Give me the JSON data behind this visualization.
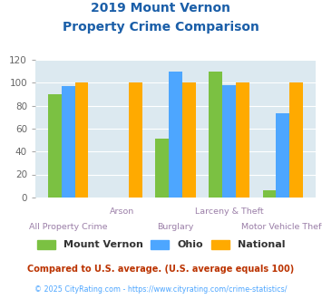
{
  "title_line1": "2019 Mount Vernon",
  "title_line2": "Property Crime Comparison",
  "categories": [
    "All Property Crime",
    "Arson",
    "Burglary",
    "Larceny & Theft",
    "Motor Vehicle Theft"
  ],
  "mount_vernon": [
    90,
    0,
    51,
    110,
    6
  ],
  "ohio": [
    97,
    0,
    110,
    98,
    73
  ],
  "national": [
    100,
    100,
    100,
    100,
    100
  ],
  "color_mv": "#7bc142",
  "color_ohio": "#4da6ff",
  "color_national": "#ffaa00",
  "ylim": [
    0,
    120
  ],
  "yticks": [
    0,
    20,
    40,
    60,
    80,
    100,
    120
  ],
  "bg_color": "#dce9f0",
  "title_color": "#1a5ea8",
  "xlabel_color": "#9b7fa8",
  "legend_text_color": "#333333",
  "footnote1": "Compared to U.S. average. (U.S. average equals 100)",
  "footnote2": "© 2025 CityRating.com - https://www.cityrating.com/crime-statistics/",
  "footnote1_color": "#bb3300",
  "footnote2_color": "#4da6ff"
}
